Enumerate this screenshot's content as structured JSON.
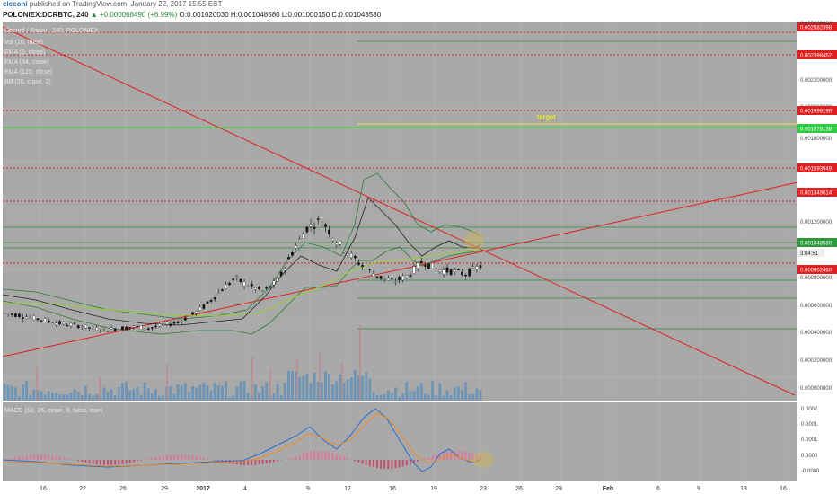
{
  "header": {
    "author": "cicconi",
    "published": "published on TradingView.com, January 22, 2017 15:55 EST",
    "symbol": "POLONIEX:DCRBTC, 240",
    "change": "+0.000068490 (+6.99%)",
    "ohlc": "O:0.001020030 H:0.001048580 L:0.001000150 C:0.001048580"
  },
  "chart_data": {
    "type": "candlestick",
    "title": "Decred / Bitcoin, 240, POLONIEX",
    "indicators": [
      "Vol (20, false)",
      "EMA (8, close)",
      "EMA (34, close)",
      "EMA (120, close)",
      "BB (20, close, 2)"
    ],
    "y_ticks": [
      "0.002600000",
      "0.002200000",
      "0.002000000",
      "0.001800000",
      "0.001400000",
      "0.001200000",
      "0.000800000",
      "0.000600000",
      "0.000400000",
      "0.000200000",
      "0.000000000"
    ],
    "price_tags": [
      {
        "label": "0.002582398",
        "value": 0.002582398,
        "color": "#e02020"
      },
      {
        "label": "0.002398452",
        "value": 0.002398452,
        "color": "#e02020"
      },
      {
        "label": "0.001999190",
        "value": 0.00199919,
        "color": "#e02020"
      },
      {
        "label": "0.001878138",
        "value": 0.001878138,
        "color": "#2ecc40"
      },
      {
        "label": "0.001593949",
        "value": 0.001593949,
        "color": "#e02020"
      },
      {
        "label": "0.001349614",
        "value": 0.001349614,
        "color": "#e02020"
      },
      {
        "label": "0.001048580",
        "value": 0.00104858,
        "color": "#2e9b3a"
      },
      {
        "label": "0.000902460",
        "value": 0.00090246,
        "color": "#e02020"
      }
    ],
    "countdown": "3:04:51",
    "target_label": "target",
    "x_labels": [
      "16",
      "22",
      "26",
      "29",
      "2017",
      "4",
      "9",
      "12",
      "16",
      "19",
      "23",
      "26",
      "29",
      "Feb",
      "6",
      "9",
      "13",
      "16"
    ],
    "macd": {
      "title": "MACD (12, 26, close, 9, false, true)",
      "y_ticks": [
        "0.0002",
        "0.0001",
        "0.0001",
        "0.0000",
        "-0.0000"
      ]
    },
    "series": [
      {
        "name": "price (approx)",
        "values": [
          0.00072,
          0.00071,
          0.00069,
          0.00067,
          0.00065,
          0.00064,
          0.00062,
          0.00061,
          0.00062,
          0.00063,
          0.00062,
          0.00064,
          0.00066,
          0.00071,
          0.00078,
          0.00088,
          0.00096,
          0.00091,
          0.00087,
          0.00095,
          0.00115,
          0.00131,
          0.00136,
          0.00122,
          0.00112,
          0.00103,
          0.00097,
          0.00094,
          0.00098,
          0.00108,
          0.00102,
          0.00101,
          0.00099,
          0.001048
        ]
      }
    ]
  }
}
